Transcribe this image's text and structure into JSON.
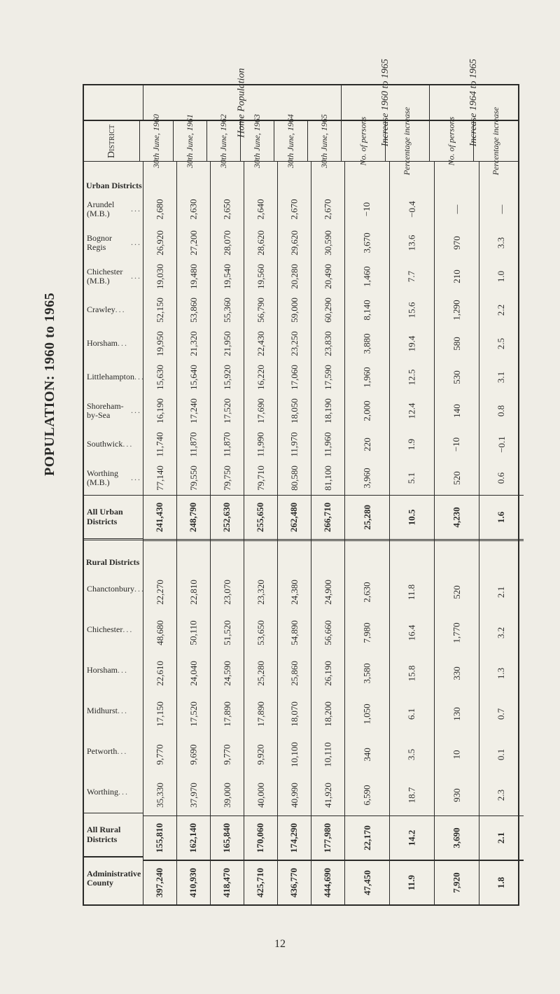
{
  "title": "POPULATION: 1960 to 1965",
  "pageNumber": "12",
  "groupHeaders": {
    "district": "District",
    "home": "Home Population",
    "inc1": "Increase 1960 to 1965",
    "inc2": "Increase 1964 to 1965"
  },
  "colHeaders": {
    "y1960": "30th June, 1960",
    "y1961": "30th June, 1961",
    "y1962": "30th June, 1962",
    "y1963": "30th June, 1963",
    "y1964": "30th June, 1964",
    "y1965": "30th June, 1965",
    "no1": "No. of persons",
    "pct1": "Percentage increase",
    "no2": "No. of persons",
    "pct2": "Percentage increase"
  },
  "sections": {
    "urbanTitle": "Urban Districts",
    "ruralTitle": "Rural Districts",
    "allUrban": "All Urban Districts",
    "allRural": "All Rural Districts",
    "adminCounty": "Administrative County"
  },
  "urban": [
    {
      "name": "Arundel (M.B.)",
      "y1960": "2,680",
      "y1961": "2,630",
      "y1962": "2,650",
      "y1963": "2,640",
      "y1964": "2,670",
      "y1965": "2,670",
      "no1": "−10",
      "pct1": "−0.4",
      "no2": "—",
      "pct2": "—"
    },
    {
      "name": "Bognor Regis",
      "y1960": "26,920",
      "y1961": "27,200",
      "y1962": "28,070",
      "y1963": "28,620",
      "y1964": "29,620",
      "y1965": "30,590",
      "no1": "3,670",
      "pct1": "13.6",
      "no2": "970",
      "pct2": "3.3"
    },
    {
      "name": "Chichester (M.B.)",
      "y1960": "19,030",
      "y1961": "19,480",
      "y1962": "19,540",
      "y1963": "19,560",
      "y1964": "20,280",
      "y1965": "20,490",
      "no1": "1,460",
      "pct1": "7.7",
      "no2": "210",
      "pct2": "1.0"
    },
    {
      "name": "Crawley",
      "y1960": "52,150",
      "y1961": "53,860",
      "y1962": "55,360",
      "y1963": "56,790",
      "y1964": "59,000",
      "y1965": "60,290",
      "no1": "8,140",
      "pct1": "15.6",
      "no2": "1,290",
      "pct2": "2.2"
    },
    {
      "name": "Horsham",
      "y1960": "19,950",
      "y1961": "21,320",
      "y1962": "21,950",
      "y1963": "22,430",
      "y1964": "23,250",
      "y1965": "23,830",
      "no1": "3,880",
      "pct1": "19.4",
      "no2": "580",
      "pct2": "2.5"
    },
    {
      "name": "Littlehampton",
      "y1960": "15,630",
      "y1961": "15,640",
      "y1962": "15,920",
      "y1963": "16,220",
      "y1964": "17,060",
      "y1965": "17,590",
      "no1": "1,960",
      "pct1": "12.5",
      "no2": "530",
      "pct2": "3.1"
    },
    {
      "name": "Shoreham-by-Sea",
      "y1960": "16,190",
      "y1961": "17,240",
      "y1962": "17,520",
      "y1963": "17,690",
      "y1964": "18,050",
      "y1965": "18,190",
      "no1": "2,000",
      "pct1": "12.4",
      "no2": "140",
      "pct2": "0.8"
    },
    {
      "name": "Southwick",
      "y1960": "11,740",
      "y1961": "11,870",
      "y1962": "11,870",
      "y1963": "11,990",
      "y1964": "11,970",
      "y1965": "11,960",
      "no1": "220",
      "pct1": "1.9",
      "no2": "−10",
      "pct2": "−0.1"
    },
    {
      "name": "Worthing (M.B.)",
      "y1960": "77,140",
      "y1961": "79,550",
      "y1962": "79,750",
      "y1963": "79,710",
      "y1964": "80,580",
      "y1965": "81,100",
      "no1": "3,960",
      "pct1": "5.1",
      "no2": "520",
      "pct2": "0.6"
    }
  ],
  "allUrban": {
    "y1960": "241,430",
    "y1961": "248,790",
    "y1962": "252,630",
    "y1963": "255,650",
    "y1964": "262,480",
    "y1965": "266,710",
    "no1": "25,280",
    "pct1": "10.5",
    "no2": "4,230",
    "pct2": "1.6"
  },
  "rural": [
    {
      "name": "Chanctonbury",
      "y1960": "22,270",
      "y1961": "22,810",
      "y1962": "23,070",
      "y1963": "23,320",
      "y1964": "24,380",
      "y1965": "24,900",
      "no1": "2,630",
      "pct1": "11.8",
      "no2": "520",
      "pct2": "2.1"
    },
    {
      "name": "Chichester",
      "y1960": "48,680",
      "y1961": "50,110",
      "y1962": "51,520",
      "y1963": "53,650",
      "y1964": "54,890",
      "y1965": "56,660",
      "no1": "7,980",
      "pct1": "16.4",
      "no2": "1,770",
      "pct2": "3.2"
    },
    {
      "name": "Horsham",
      "y1960": "22,610",
      "y1961": "24,040",
      "y1962": "24,590",
      "y1963": "25,280",
      "y1964": "25,860",
      "y1965": "26,190",
      "no1": "3,580",
      "pct1": "15.8",
      "no2": "330",
      "pct2": "1.3"
    },
    {
      "name": "Midhurst",
      "y1960": "17,150",
      "y1961": "17,520",
      "y1962": "17,890",
      "y1963": "17,890",
      "y1964": "18,070",
      "y1965": "18,200",
      "no1": "1,050",
      "pct1": "6.1",
      "no2": "130",
      "pct2": "0.7"
    },
    {
      "name": "Petworth",
      "y1960": "9,770",
      "y1961": "9,690",
      "y1962": "9,770",
      "y1963": "9,920",
      "y1964": "10,100",
      "y1965": "10,110",
      "no1": "340",
      "pct1": "3.5",
      "no2": "10",
      "pct2": "0.1"
    },
    {
      "name": "Worthing",
      "y1960": "35,330",
      "y1961": "37,970",
      "y1962": "39,000",
      "y1963": "40,000",
      "y1964": "40,990",
      "y1965": "41,920",
      "no1": "6,590",
      "pct1": "18.7",
      "no2": "930",
      "pct2": "2.3"
    }
  ],
  "allRural": {
    "y1960": "155,810",
    "y1961": "162,140",
    "y1962": "165,840",
    "y1963": "170,060",
    "y1964": "174,290",
    "y1965": "177,980",
    "no1": "22,170",
    "pct1": "14.2",
    "no2": "3,690",
    "pct2": "2.1"
  },
  "admin": {
    "y1960": "397,240",
    "y1961": "410,930",
    "y1962": "418,470",
    "y1963": "425,710",
    "y1964": "436,770",
    "y1965": "444,690",
    "no1": "47,450",
    "pct1": "11.9",
    "no2": "7,920",
    "pct2": "1.8"
  },
  "style": {
    "bg": "#efede6",
    "ink": "#2a2a28",
    "fontBody": 13,
    "fontLabel": 12,
    "fontTitle": 20
  }
}
